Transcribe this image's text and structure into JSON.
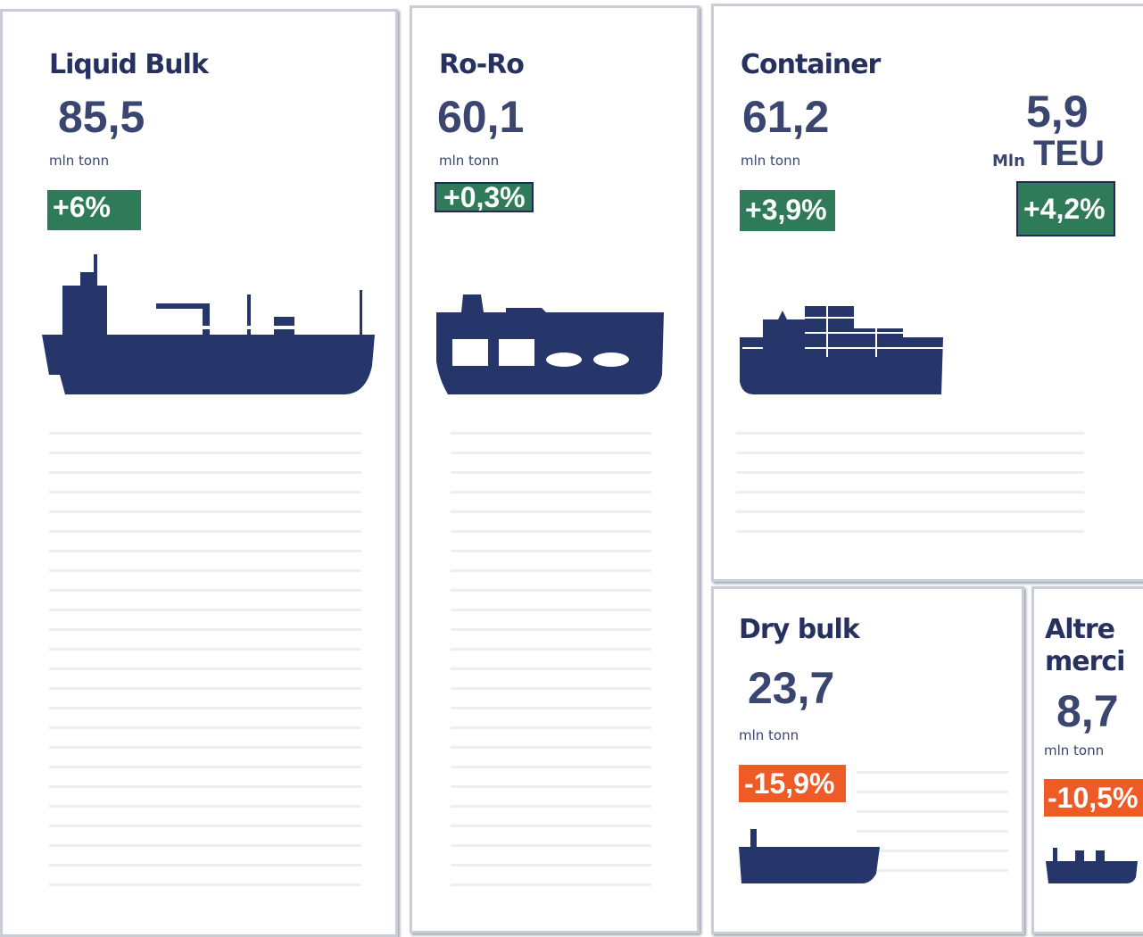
{
  "panels": [
    {
      "title": "Liquid Bulk",
      "value": "85,5",
      "unit": "mln tonn",
      "change": "+6%"
    },
    {
      "title": "Ro-Ro",
      "value": "60,1",
      "unit": "mln tonn",
      "change": "+0,3%"
    },
    {
      "title": "Container",
      "value": "61,2",
      "unit": "mln tonn",
      "change": "+3,9%",
      "teu_value": "5,9",
      "teu_prefix": "Mln",
      "teu_unit": "TEU",
      "teu_change": "+4,2%"
    },
    {
      "title": "Dry bulk",
      "value": "23,7",
      "unit": "mln tonn",
      "change": "-15,9%"
    },
    {
      "title": "Altre merci",
      "value": "8,7",
      "unit": "mln tonn",
      "change": "-10,5%"
    }
  ]
}
